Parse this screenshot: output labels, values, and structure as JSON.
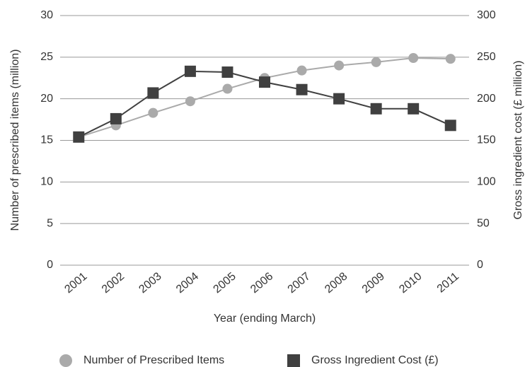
{
  "chart_data": {
    "type": "line",
    "x_label": "Year (ending March)",
    "y_label": "Number of prescribed items (million)",
    "y2_label": "Gross ingredient cost (£ million)",
    "categories": [
      "2001",
      "2002",
      "2003",
      "2004",
      "2005",
      "2006",
      "2007",
      "2008",
      "2009",
      "2010",
      "2011"
    ],
    "series": [
      {
        "name": "Number of Prescribed Items",
        "color": "#aaaaaa",
        "marker": "circle",
        "values": [
          15.4,
          16.8,
          18.3,
          19.7,
          21.2,
          22.5,
          23.4,
          24.0,
          24.4,
          24.9,
          24.8
        ]
      },
      {
        "name": "Gross Ingredient Cost (£)",
        "color": "#404040",
        "marker": "square",
        "axis": "y2",
        "values": [
          154,
          176,
          207,
          233,
          232,
          220,
          211,
          200,
          188,
          188,
          168
        ]
      }
    ],
    "ylim": [
      0,
      30
    ],
    "yticks": [
      0,
      5,
      10,
      15,
      20,
      25,
      30
    ],
    "y2lim": [
      0,
      300
    ],
    "y2ticks": [
      0,
      50,
      100,
      150,
      200,
      250,
      300
    ],
    "grid": true
  }
}
